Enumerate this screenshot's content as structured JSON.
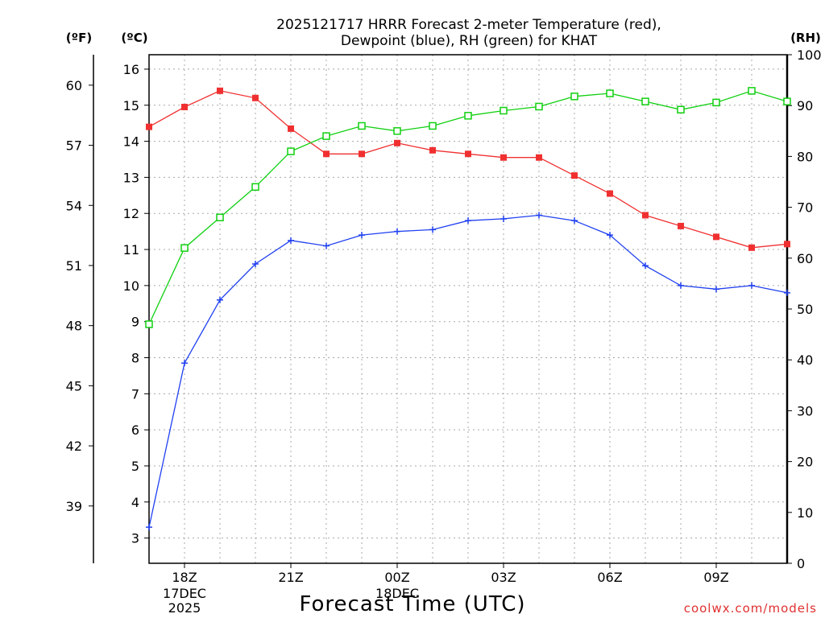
{
  "chart_data": {
    "type": "line",
    "title_line1": "2025121717 HRRR Forecast 2-meter Temperature (red),",
    "title_line2": "Dewpoint (blue), RH (green) for KHAT",
    "unit_f": "(ºF)",
    "unit_c": "(ºC)",
    "unit_rh": "(RH)",
    "xlabel": "Forecast Time (UTC)",
    "credit": "coolwx.com/models",
    "x_hours": [
      17,
      18,
      19,
      20,
      21,
      22,
      23,
      24,
      25,
      26,
      27,
      28,
      29,
      30,
      31,
      32,
      33,
      34,
      35
    ],
    "x_range": [
      17,
      35
    ],
    "x_ticks": [
      {
        "hour": 18,
        "label": "18Z",
        "sub1": "17DEC",
        "sub2": "2025"
      },
      {
        "hour": 21,
        "label": "21Z",
        "sub1": "",
        "sub2": ""
      },
      {
        "hour": 24,
        "label": "00Z",
        "sub1": "18DEC",
        "sub2": ""
      },
      {
        "hour": 27,
        "label": "03Z",
        "sub1": "",
        "sub2": ""
      },
      {
        "hour": 30,
        "label": "06Z",
        "sub1": "",
        "sub2": ""
      },
      {
        "hour": 33,
        "label": "09Z",
        "sub1": "",
        "sub2": ""
      }
    ],
    "c_range": [
      2.3,
      16.4
    ],
    "c_ticks": [
      3,
      4,
      5,
      6,
      7,
      8,
      9,
      10,
      11,
      12,
      13,
      14,
      15,
      16
    ],
    "f_ticks": [
      39,
      42,
      45,
      48,
      51,
      54,
      57,
      60
    ],
    "rh_range": [
      0,
      100
    ],
    "rh_ticks": [
      0,
      10,
      20,
      30,
      40,
      50,
      60,
      70,
      80,
      90,
      100
    ],
    "series": [
      {
        "name": "Temperature",
        "axis": "c",
        "color": "#f03030",
        "marker": "filled-square",
        "values": [
          14.4,
          14.95,
          15.4,
          15.2,
          14.35,
          13.65,
          13.65,
          13.95,
          13.75,
          13.65,
          13.55,
          13.55,
          13.05,
          12.55,
          11.95,
          11.65,
          11.35,
          11.05,
          11.15
        ]
      },
      {
        "name": "Dewpoint",
        "axis": "c",
        "color": "#2040f0",
        "marker": "plus",
        "values": [
          3.3,
          7.85,
          9.6,
          10.6,
          11.25,
          11.1,
          11.4,
          11.5,
          11.55,
          11.8,
          11.85,
          11.95,
          11.8,
          11.4,
          10.55,
          10.0,
          9.9,
          10.0,
          9.8
        ]
      },
      {
        "name": "RH",
        "axis": "rh",
        "color": "#10d010",
        "marker": "open-square",
        "values": [
          47,
          62,
          68,
          74,
          81,
          84,
          86,
          85,
          86,
          88,
          89,
          89.8,
          91.8,
          92.4,
          90.8,
          89.2,
          90.6,
          92.9,
          90.8
        ]
      }
    ]
  }
}
